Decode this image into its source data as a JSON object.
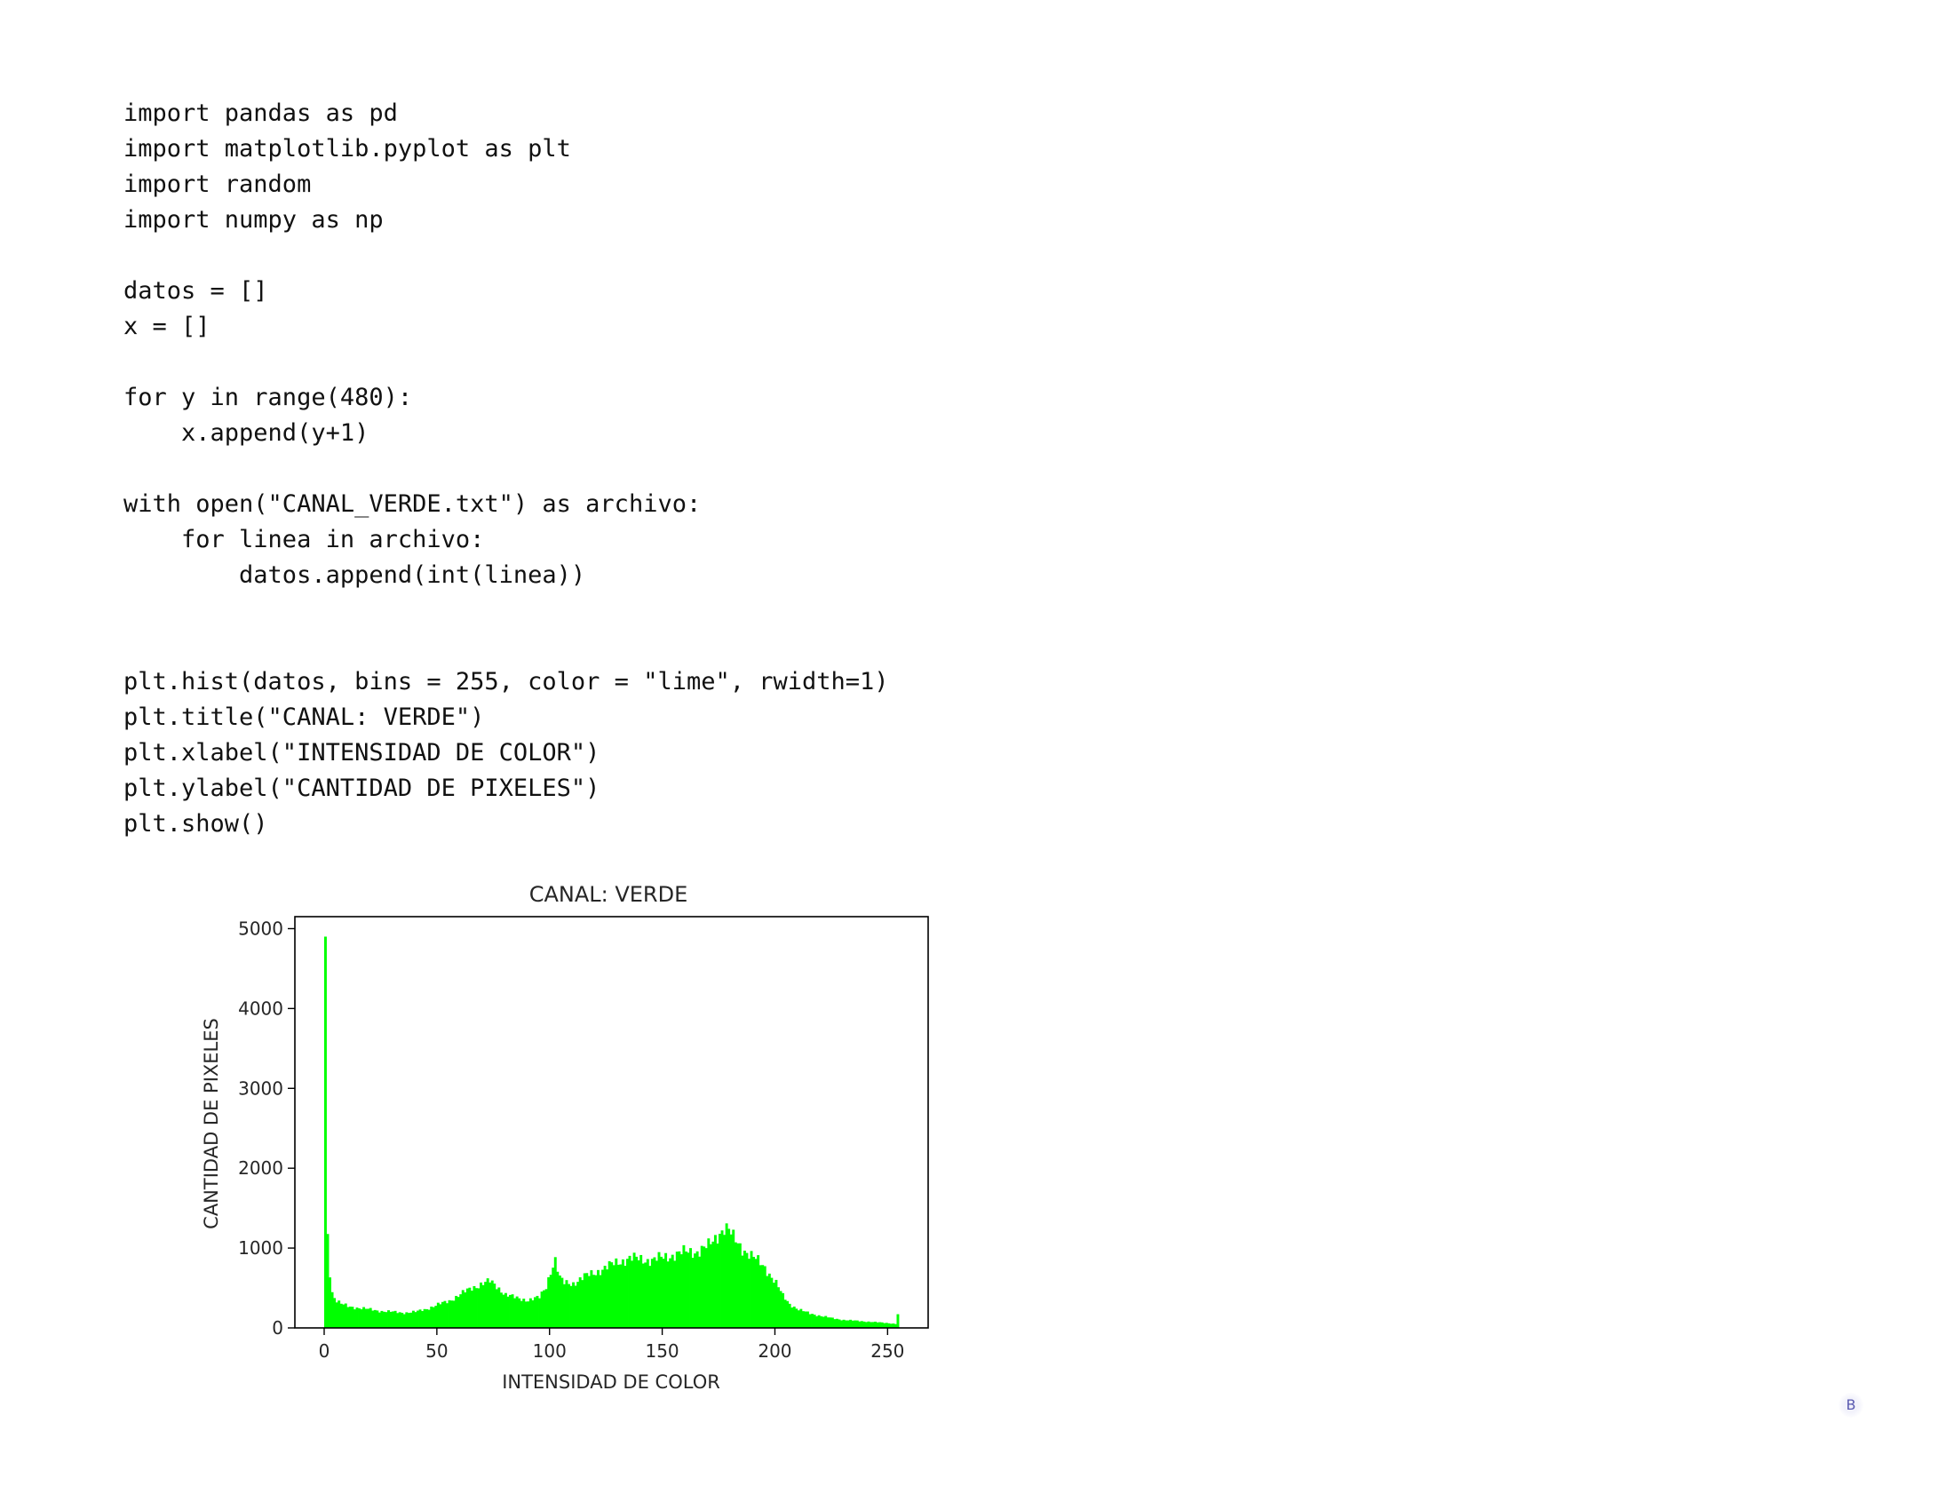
{
  "code": {
    "lines": [
      "import pandas as pd",
      "import matplotlib.pyplot as plt",
      "import random",
      "import numpy as np",
      "",
      "datos = []",
      "x = []",
      "",
      "for y in range(480):",
      "    x.append(y+1)",
      "",
      "with open(\"CANAL_VERDE.txt\") as archivo:",
      "    for linea in archivo:",
      "        datos.append(int(linea))",
      "",
      "",
      "plt.hist(datos, bins = 255, color = \"lime\", rwidth=1)",
      "plt.title(\"CANAL: VERDE\")",
      "plt.xlabel(\"INTENSIDAD DE COLOR\")",
      "plt.ylabel(\"CANTIDAD DE PIXELES\")",
      "plt.show()"
    ]
  },
  "chart_data": {
    "type": "bar",
    "title": "CANAL: VERDE",
    "xlabel": "INTENSIDAD DE COLOR",
    "ylabel": "CANTIDAD DE PIXELES",
    "xlim": [
      -13,
      268
    ],
    "ylim": [
      0,
      5150
    ],
    "xticks": [
      0,
      50,
      100,
      150,
      200,
      250
    ],
    "yticks": [
      0,
      1000,
      2000,
      3000,
      4000,
      5000
    ],
    "bar_color": "#00ff00",
    "bins": 255,
    "bin_range": [
      0,
      255
    ],
    "grid": false,
    "profile": [
      [
        0,
        4900
      ],
      [
        1,
        1150
      ],
      [
        2,
        700
      ],
      [
        3,
        450
      ],
      [
        4,
        380
      ],
      [
        5,
        340
      ],
      [
        7,
        300
      ],
      [
        10,
        270
      ],
      [
        15,
        250
      ],
      [
        20,
        230
      ],
      [
        25,
        210
      ],
      [
        30,
        200
      ],
      [
        35,
        190
      ],
      [
        40,
        200
      ],
      [
        45,
        240
      ],
      [
        50,
        290
      ],
      [
        55,
        340
      ],
      [
        60,
        420
      ],
      [
        65,
        500
      ],
      [
        70,
        560
      ],
      [
        73,
        580
      ],
      [
        76,
        520
      ],
      [
        80,
        420
      ],
      [
        85,
        370
      ],
      [
        90,
        350
      ],
      [
        95,
        380
      ],
      [
        98,
        520
      ],
      [
        100,
        720
      ],
      [
        102,
        850
      ],
      [
        104,
        620
      ],
      [
        106,
        560
      ],
      [
        110,
        560
      ],
      [
        115,
        640
      ],
      [
        120,
        700
      ],
      [
        125,
        760
      ],
      [
        130,
        830
      ],
      [
        135,
        870
      ],
      [
        140,
        860
      ],
      [
        145,
        850
      ],
      [
        150,
        880
      ],
      [
        155,
        920
      ],
      [
        160,
        950
      ],
      [
        165,
        960
      ],
      [
        170,
        1020
      ],
      [
        173,
        1120
      ],
      [
        175,
        1200
      ],
      [
        177,
        1260
      ],
      [
        179,
        1220
      ],
      [
        181,
        1120
      ],
      [
        185,
        1000
      ],
      [
        190,
        880
      ],
      [
        195,
        760
      ],
      [
        200,
        560
      ],
      [
        203,
        400
      ],
      [
        206,
        300
      ],
      [
        210,
        230
      ],
      [
        215,
        180
      ],
      [
        220,
        150
      ],
      [
        225,
        120
      ],
      [
        230,
        100
      ],
      [
        235,
        90
      ],
      [
        240,
        80
      ],
      [
        245,
        70
      ],
      [
        250,
        60
      ],
      [
        253,
        50
      ],
      [
        254,
        170
      ]
    ]
  },
  "page_mark": "B"
}
